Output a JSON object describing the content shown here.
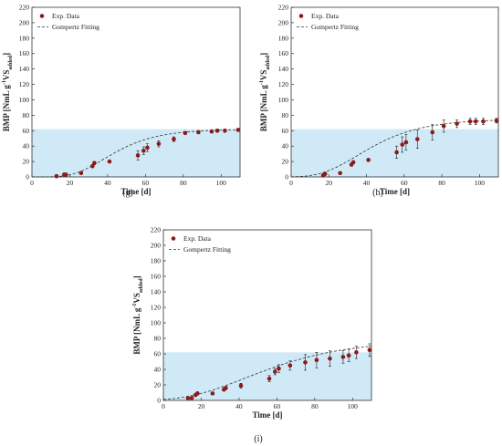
{
  "colors": {
    "band": "#cfe9f6",
    "marker": "#8b1a1a",
    "errorbar": "#222222",
    "fit": "#333333",
    "axis": "#333333"
  },
  "chart_data": [
    {
      "type": "scatter",
      "panel": "(g)",
      "xlabel": "Time [d]",
      "ylabel_main": "BMP [NmL g",
      "ylabel_sup": "-1",
      "ylabel_tail": "VS",
      "ylabel_sub": "added",
      "ylabel_end": "]",
      "xlim": [
        0,
        110
      ],
      "ylim": [
        0,
        220
      ],
      "xticks": [
        0,
        20,
        40,
        60,
        80,
        100
      ],
      "yticks": [
        0,
        20,
        40,
        60,
        80,
        100,
        120,
        140,
        160,
        180,
        200,
        220
      ],
      "band_top": 62,
      "legend": [
        "Exp. Data",
        "Gompertz Fitting"
      ],
      "legend_position": "top-left",
      "series": [
        {
          "name": "Exp. Data",
          "x": [
            13,
            17,
            18,
            26,
            32,
            33,
            41,
            56,
            59,
            61,
            67,
            75,
            81,
            88,
            95,
            98,
            102,
            109
          ],
          "y": [
            1,
            3,
            3,
            5,
            14,
            18,
            20,
            28,
            34,
            38,
            43,
            49,
            57,
            58,
            59,
            60,
            60,
            61
          ],
          "err": [
            2,
            2,
            1,
            1,
            2,
            2,
            1,
            6,
            5,
            5,
            4,
            3,
            2,
            2,
            2,
            2,
            2,
            2
          ]
        },
        {
          "name": "Gompertz Fitting",
          "gompertz": {
            "P": 62,
            "Rm": 1.45,
            "lambda": 22
          }
        }
      ]
    },
    {
      "type": "scatter",
      "panel": "(h)",
      "xlabel": "Time [d]",
      "ylabel_main": "BMP [NmL g",
      "ylabel_sup": "-1",
      "ylabel_tail": "VS",
      "ylabel_sub": "added",
      "ylabel_end": "]",
      "xlim": [
        0,
        110
      ],
      "ylim": [
        0,
        220
      ],
      "xticks": [
        0,
        20,
        40,
        60,
        80,
        100
      ],
      "yticks": [
        0,
        20,
        40,
        60,
        80,
        100,
        120,
        140,
        160,
        180,
        200,
        220
      ],
      "band_top": 62,
      "legend": [
        "Exp. Data",
        "Gompertz Fitting"
      ],
      "legend_position": "top-left",
      "series": [
        {
          "name": "Exp. Data",
          "x": [
            17,
            18,
            26,
            32,
            33,
            41,
            56,
            59,
            61,
            67,
            75,
            81,
            88,
            95,
            98,
            102,
            109
          ],
          "y": [
            2,
            4,
            5,
            16,
            19,
            22,
            32,
            42,
            45,
            49,
            58,
            66,
            69,
            72,
            72,
            72,
            73
          ],
          "err": [
            2,
            2,
            1,
            2,
            2,
            2,
            8,
            10,
            10,
            12,
            10,
            8,
            5,
            4,
            4,
            4,
            3
          ]
        },
        {
          "name": "Gompertz Fitting",
          "gompertz": {
            "P": 75,
            "Rm": 1.45,
            "lambda": 16
          }
        }
      ]
    },
    {
      "type": "scatter",
      "panel": "(i)",
      "xlabel": "Time [d]",
      "ylabel_main": "BMP [NmL g",
      "ylabel_sup": "-1",
      "ylabel_tail": "VS",
      "ylabel_sub": "added",
      "ylabel_end": "]",
      "xlim": [
        0,
        110
      ],
      "ylim": [
        0,
        220
      ],
      "xticks": [
        0,
        20,
        40,
        60,
        80,
        100
      ],
      "yticks": [
        0,
        20,
        40,
        60,
        80,
        100,
        120,
        140,
        160,
        180,
        200,
        220
      ],
      "band_top": 62,
      "legend": [
        "Exp. Data",
        "Gompertz Fitting"
      ],
      "legend_position": "top-left",
      "series": [
        {
          "name": "Exp. Data",
          "x": [
            13,
            15,
            17,
            18,
            26,
            32,
            33,
            41,
            56,
            59,
            61,
            67,
            75,
            81,
            88,
            95,
            98,
            102,
            109
          ],
          "y": [
            3,
            3,
            7,
            9,
            9,
            14,
            16,
            19,
            28,
            37,
            41,
            45,
            49,
            52,
            54,
            56,
            58,
            62,
            65
          ],
          "err": [
            2,
            2,
            2,
            2,
            1,
            2,
            2,
            3,
            4,
            4,
            5,
            6,
            10,
            10,
            10,
            8,
            8,
            8,
            8
          ]
        },
        {
          "name": "Gompertz Fitting",
          "gompertz": {
            "P": 78,
            "Rm": 0.95,
            "lambda": 13
          }
        }
      ]
    }
  ]
}
